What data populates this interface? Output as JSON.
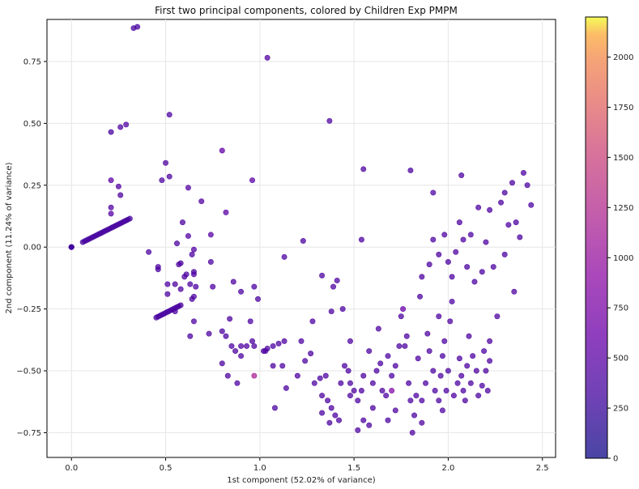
{
  "chart_data": {
    "type": "scatter",
    "title": "First two principal components, colored by Children Exp PMPM",
    "xlabel": "1st component (52.02% of variance)",
    "ylabel": "2nd component (11.24% of variance)",
    "xlim": [
      -0.13,
      2.57
    ],
    "ylim": [
      -0.85,
      0.92
    ],
    "xticks": [
      0.0,
      0.5,
      1.0,
      1.5,
      2.0,
      2.5
    ],
    "xtick_labels": [
      "0.0",
      "0.5",
      "1.0",
      "1.5",
      "2.0",
      "2.5"
    ],
    "yticks": [
      0.75,
      0.5,
      0.25,
      0.0,
      -0.25,
      -0.5,
      -0.75
    ],
    "ytick_labels": [
      "0.75",
      "0.50",
      "0.25",
      "0.00",
      "−0.25",
      "−0.50",
      "−0.75"
    ],
    "grid": true,
    "colorbar": {
      "colormap": "plasma",
      "min": 0,
      "max": 2200,
      "ticks": [
        0,
        250,
        500,
        750,
        1000,
        1250,
        1500,
        1750,
        2000
      ],
      "tick_labels": [
        "0",
        "250",
        "500",
        "750",
        "1000",
        "1250",
        "1500",
        "1750",
        "2000"
      ]
    },
    "points": [
      {
        "x": 0.33,
        "y": 0.885,
        "c": 80
      },
      {
        "x": 0.35,
        "y": 0.89,
        "c": 80
      },
      {
        "x": 1.04,
        "y": 0.765,
        "c": 120
      },
      {
        "x": 1.37,
        "y": 0.51,
        "c": 100
      },
      {
        "x": 0.52,
        "y": 0.535,
        "c": 100
      },
      {
        "x": 0.29,
        "y": 0.495,
        "c": 120
      },
      {
        "x": 0.26,
        "y": 0.485,
        "c": 100
      },
      {
        "x": 0.21,
        "y": 0.465,
        "c": 80
      },
      {
        "x": 0.8,
        "y": 0.39,
        "c": 180
      },
      {
        "x": 0.5,
        "y": 0.34,
        "c": 100
      },
      {
        "x": 0.52,
        "y": 0.285,
        "c": 100
      },
      {
        "x": 0.48,
        "y": 0.27,
        "c": 100
      },
      {
        "x": 0.96,
        "y": 0.27,
        "c": 150
      },
      {
        "x": 0.21,
        "y": 0.27,
        "c": 160
      },
      {
        "x": 0.25,
        "y": 0.245,
        "c": 120
      },
      {
        "x": 0.62,
        "y": 0.24,
        "c": 120
      },
      {
        "x": 0.26,
        "y": 0.21,
        "c": 100
      },
      {
        "x": 0.69,
        "y": 0.185,
        "c": 120
      },
      {
        "x": 0.21,
        "y": 0.16,
        "c": 120
      },
      {
        "x": 0.21,
        "y": 0.135,
        "c": 120
      },
      {
        "x": 0.82,
        "y": 0.14,
        "c": 150
      },
      {
        "x": 0.59,
        "y": 0.1,
        "c": 100
      },
      {
        "x": 0.62,
        "y": 0.045,
        "c": 120
      },
      {
        "x": 0.56,
        "y": 0.015,
        "c": 100
      },
      {
        "x": 0.41,
        "y": -0.02,
        "c": 100
      },
      {
        "x": 0.65,
        "y": -0.01,
        "c": 120
      },
      {
        "x": 0.64,
        "y": -0.03,
        "c": 100
      },
      {
        "x": 0.74,
        "y": 0.05,
        "c": 140
      },
      {
        "x": 0.46,
        "y": -0.08,
        "c": 100
      },
      {
        "x": 0.46,
        "y": -0.09,
        "c": 100
      },
      {
        "x": 0.57,
        "y": -0.07,
        "c": 100
      },
      {
        "x": 0.58,
        "y": -0.065,
        "c": 100
      },
      {
        "x": 0.65,
        "y": -0.1,
        "c": 100
      },
      {
        "x": 0.65,
        "y": -0.11,
        "c": 100
      },
      {
        "x": 0.61,
        "y": -0.11,
        "c": 100
      },
      {
        "x": 0.6,
        "y": -0.12,
        "c": 100
      },
      {
        "x": 0.51,
        "y": -0.15,
        "c": 100
      },
      {
        "x": 0.55,
        "y": -0.15,
        "c": 100
      },
      {
        "x": 0.63,
        "y": -0.15,
        "c": 100
      },
      {
        "x": 0.66,
        "y": -0.16,
        "c": 100
      },
      {
        "x": 0.58,
        "y": -0.17,
        "c": 100
      },
      {
        "x": 0.51,
        "y": -0.19,
        "c": 100
      },
      {
        "x": 0.64,
        "y": -0.21,
        "c": 100
      },
      {
        "x": 0.65,
        "y": -0.2,
        "c": 100
      },
      {
        "x": 0.74,
        "y": -0.06,
        "c": 100
      },
      {
        "x": 0.86,
        "y": -0.14,
        "c": 100
      },
      {
        "x": 0.75,
        "y": -0.16,
        "c": 100
      },
      {
        "x": 0.9,
        "y": -0.18,
        "c": 100
      },
      {
        "x": 0.97,
        "y": -0.16,
        "c": 100
      },
      {
        "x": 0.99,
        "y": -0.21,
        "c": 100
      },
      {
        "x": 1.13,
        "y": -0.04,
        "c": 100
      },
      {
        "x": 1.23,
        "y": 0.025,
        "c": 100
      },
      {
        "x": 1.33,
        "y": -0.115,
        "c": 100
      },
      {
        "x": 1.39,
        "y": -0.16,
        "c": 100
      },
      {
        "x": 1.41,
        "y": -0.135,
        "c": 100
      },
      {
        "x": 1.54,
        "y": 0.03,
        "c": 100
      },
      {
        "x": 1.55,
        "y": 0.315,
        "c": 100
      },
      {
        "x": 1.8,
        "y": 0.31,
        "c": 100
      },
      {
        "x": 1.92,
        "y": 0.22,
        "c": 100
      },
      {
        "x": 0.55,
        "y": -0.26,
        "c": 100
      },
      {
        "x": 0.65,
        "y": -0.3,
        "c": 100
      },
      {
        "x": 0.63,
        "y": -0.36,
        "c": 100
      },
      {
        "x": 0.73,
        "y": -0.35,
        "c": 100
      },
      {
        "x": 0.8,
        "y": -0.34,
        "c": 100
      },
      {
        "x": 0.82,
        "y": -0.36,
        "c": 100
      },
      {
        "x": 0.84,
        "y": -0.29,
        "c": 100
      },
      {
        "x": 0.85,
        "y": -0.4,
        "c": 100
      },
      {
        "x": 0.87,
        "y": -0.42,
        "c": 100
      },
      {
        "x": 0.9,
        "y": -0.4,
        "c": 100
      },
      {
        "x": 0.9,
        "y": -0.44,
        "c": 100
      },
      {
        "x": 0.93,
        "y": -0.4,
        "c": 100
      },
      {
        "x": 0.95,
        "y": -0.3,
        "c": 100
      },
      {
        "x": 0.96,
        "y": -0.38,
        "c": 100
      },
      {
        "x": 0.97,
        "y": -0.4,
        "c": 100
      },
      {
        "x": 1.02,
        "y": -0.42,
        "c": 100
      },
      {
        "x": 1.04,
        "y": -0.41,
        "c": 100
      },
      {
        "x": 1.07,
        "y": -0.4,
        "c": 100
      },
      {
        "x": 1.1,
        "y": -0.39,
        "c": 100
      },
      {
        "x": 1.13,
        "y": -0.38,
        "c": 100
      },
      {
        "x": 1.12,
        "y": -0.48,
        "c": 100
      },
      {
        "x": 1.07,
        "y": -0.48,
        "c": 100
      },
      {
        "x": 1.03,
        "y": -0.42,
        "c": 100
      },
      {
        "x": 1.14,
        "y": -0.57,
        "c": 100
      },
      {
        "x": 1.2,
        "y": -0.52,
        "c": 100
      },
      {
        "x": 1.22,
        "y": -0.38,
        "c": 100
      },
      {
        "x": 1.24,
        "y": -0.46,
        "c": 100
      },
      {
        "x": 1.27,
        "y": -0.43,
        "c": 100
      },
      {
        "x": 1.29,
        "y": -0.55,
        "c": 100
      },
      {
        "x": 1.32,
        "y": -0.53,
        "c": 100
      },
      {
        "x": 1.33,
        "y": -0.6,
        "c": 100
      },
      {
        "x": 1.35,
        "y": -0.52,
        "c": 100
      },
      {
        "x": 1.36,
        "y": -0.62,
        "c": 100
      },
      {
        "x": 1.38,
        "y": -0.65,
        "c": 100
      },
      {
        "x": 1.4,
        "y": -0.68,
        "c": 100
      },
      {
        "x": 1.42,
        "y": -0.7,
        "c": 100
      },
      {
        "x": 1.37,
        "y": -0.71,
        "c": 100
      },
      {
        "x": 1.43,
        "y": -0.55,
        "c": 100
      },
      {
        "x": 1.45,
        "y": -0.48,
        "c": 100
      },
      {
        "x": 1.47,
        "y": -0.5,
        "c": 100
      },
      {
        "x": 1.48,
        "y": -0.6,
        "c": 100
      },
      {
        "x": 1.5,
        "y": -0.58,
        "c": 100
      },
      {
        "x": 1.52,
        "y": -0.62,
        "c": 100
      },
      {
        "x": 1.54,
        "y": -0.58,
        "c": 100
      },
      {
        "x": 1.55,
        "y": -0.7,
        "c": 100
      },
      {
        "x": 1.58,
        "y": -0.72,
        "c": 100
      },
      {
        "x": 1.6,
        "y": -0.55,
        "c": 100
      },
      {
        "x": 1.62,
        "y": -0.5,
        "c": 100
      },
      {
        "x": 1.64,
        "y": -0.47,
        "c": 100
      },
      {
        "x": 1.65,
        "y": -0.58,
        "c": 100
      },
      {
        "x": 1.67,
        "y": -0.6,
        "c": 100
      },
      {
        "x": 1.68,
        "y": -0.44,
        "c": 100
      },
      {
        "x": 1.7,
        "y": -0.52,
        "c": 100
      },
      {
        "x": 1.72,
        "y": -0.66,
        "c": 100
      },
      {
        "x": 1.74,
        "y": -0.4,
        "c": 100
      },
      {
        "x": 1.75,
        "y": -0.28,
        "c": 100
      },
      {
        "x": 1.76,
        "y": -0.25,
        "c": 200
      },
      {
        "x": 1.77,
        "y": -0.4,
        "c": 100
      },
      {
        "x": 1.79,
        "y": -0.55,
        "c": 100
      },
      {
        "x": 1.8,
        "y": -0.62,
        "c": 100
      },
      {
        "x": 1.81,
        "y": -0.75,
        "c": 100
      },
      {
        "x": 1.82,
        "y": -0.68,
        "c": 100
      },
      {
        "x": 1.83,
        "y": -0.6,
        "c": 100
      },
      {
        "x": 1.84,
        "y": -0.45,
        "c": 100
      },
      {
        "x": 1.86,
        "y": -0.62,
        "c": 100
      },
      {
        "x": 1.88,
        "y": -0.55,
        "c": 100
      },
      {
        "x": 1.89,
        "y": -0.35,
        "c": 100
      },
      {
        "x": 1.9,
        "y": -0.42,
        "c": 100
      },
      {
        "x": 1.92,
        "y": -0.5,
        "c": 100
      },
      {
        "x": 1.93,
        "y": -0.58,
        "c": 100
      },
      {
        "x": 1.95,
        "y": -0.62,
        "c": 100
      },
      {
        "x": 1.96,
        "y": -0.52,
        "c": 100
      },
      {
        "x": 1.97,
        "y": -0.44,
        "c": 100
      },
      {
        "x": 1.98,
        "y": -0.38,
        "c": 100
      },
      {
        "x": 1.99,
        "y": -0.58,
        "c": 100
      },
      {
        "x": 2.0,
        "y": -0.5,
        "c": 100
      },
      {
        "x": 2.01,
        "y": -0.3,
        "c": 100
      },
      {
        "x": 2.02,
        "y": -0.22,
        "c": 100
      },
      {
        "x": 2.03,
        "y": -0.6,
        "c": 100
      },
      {
        "x": 2.05,
        "y": -0.55,
        "c": 100
      },
      {
        "x": 2.06,
        "y": -0.45,
        "c": 100
      },
      {
        "x": 2.07,
        "y": -0.52,
        "c": 100
      },
      {
        "x": 2.08,
        "y": -0.58,
        "c": 100
      },
      {
        "x": 2.1,
        "y": -0.48,
        "c": 100
      },
      {
        "x": 2.11,
        "y": -0.36,
        "c": 100
      },
      {
        "x": 2.12,
        "y": -0.55,
        "c": 100
      },
      {
        "x": 2.13,
        "y": -0.44,
        "c": 100
      },
      {
        "x": 2.15,
        "y": -0.5,
        "c": 100
      },
      {
        "x": 2.16,
        "y": -0.6,
        "c": 100
      },
      {
        "x": 2.18,
        "y": -0.56,
        "c": 100
      },
      {
        "x": 2.19,
        "y": -0.42,
        "c": 100
      },
      {
        "x": 2.2,
        "y": -0.5,
        "c": 100
      },
      {
        "x": 2.21,
        "y": -0.58,
        "c": 100
      },
      {
        "x": 2.22,
        "y": -0.38,
        "c": 100
      },
      {
        "x": 2.22,
        "y": -0.46,
        "c": 100
      },
      {
        "x": 1.95,
        "y": -0.03,
        "c": 100
      },
      {
        "x": 1.98,
        "y": 0.05,
        "c": 100
      },
      {
        "x": 2.0,
        "y": -0.06,
        "c": 100
      },
      {
        "x": 2.02,
        "y": -0.12,
        "c": 100
      },
      {
        "x": 2.04,
        "y": -0.02,
        "c": 100
      },
      {
        "x": 2.06,
        "y": 0.1,
        "c": 100
      },
      {
        "x": 2.08,
        "y": 0.03,
        "c": 100
      },
      {
        "x": 2.1,
        "y": -0.08,
        "c": 100
      },
      {
        "x": 2.12,
        "y": 0.05,
        "c": 100
      },
      {
        "x": 2.14,
        "y": -0.14,
        "c": 100
      },
      {
        "x": 2.16,
        "y": 0.16,
        "c": 100
      },
      {
        "x": 2.18,
        "y": -0.1,
        "c": 100
      },
      {
        "x": 2.2,
        "y": 0.02,
        "c": 100
      },
      {
        "x": 2.22,
        "y": 0.15,
        "c": 100
      },
      {
        "x": 2.24,
        "y": -0.08,
        "c": 100
      },
      {
        "x": 2.26,
        "y": -0.28,
        "c": 100
      },
      {
        "x": 2.28,
        "y": 0.18,
        "c": 100
      },
      {
        "x": 2.3,
        "y": 0.22,
        "c": 100
      },
      {
        "x": 2.32,
        "y": 0.09,
        "c": 100
      },
      {
        "x": 2.34,
        "y": 0.26,
        "c": 100
      },
      {
        "x": 2.36,
        "y": 0.1,
        "c": 100
      },
      {
        "x": 2.38,
        "y": 0.04,
        "c": 100
      },
      {
        "x": 2.4,
        "y": 0.3,
        "c": 100
      },
      {
        "x": 2.42,
        "y": 0.25,
        "c": 100
      },
      {
        "x": 2.44,
        "y": 0.17,
        "c": 100
      },
      {
        "x": 2.35,
        "y": -0.18,
        "c": 100
      },
      {
        "x": 2.3,
        "y": -0.03,
        "c": 100
      },
      {
        "x": 2.07,
        "y": 0.29,
        "c": 100
      },
      {
        "x": 1.85,
        "y": -0.2,
        "c": 100
      },
      {
        "x": 1.9,
        "y": -0.07,
        "c": 100
      },
      {
        "x": 1.92,
        "y": 0.03,
        "c": 100
      },
      {
        "x": 1.86,
        "y": -0.12,
        "c": 100
      },
      {
        "x": 1.63,
        "y": -0.33,
        "c": 100
      },
      {
        "x": 1.58,
        "y": -0.42,
        "c": 100
      },
      {
        "x": 1.48,
        "y": -0.38,
        "c": 100
      },
      {
        "x": 1.44,
        "y": -0.25,
        "c": 100
      },
      {
        "x": 1.38,
        "y": -0.26,
        "c": 100
      },
      {
        "x": 1.28,
        "y": -0.3,
        "c": 100
      },
      {
        "x": 0.97,
        "y": -0.52,
        "c": 450
      },
      {
        "x": 0.88,
        "y": -0.55,
        "c": 100
      },
      {
        "x": 0.83,
        "y": -0.52,
        "c": 100
      },
      {
        "x": 0.8,
        "y": -0.47,
        "c": 100
      },
      {
        "x": 1.08,
        "y": -0.65,
        "c": 100
      },
      {
        "x": 1.33,
        "y": -0.67,
        "c": 100
      },
      {
        "x": 1.6,
        "y": -0.65,
        "c": 100
      },
      {
        "x": 1.68,
        "y": -0.7,
        "c": 100
      },
      {
        "x": 1.86,
        "y": -0.71,
        "c": 100
      },
      {
        "x": 1.97,
        "y": -0.66,
        "c": 100
      },
      {
        "x": 2.09,
        "y": -0.62,
        "c": 100
      },
      {
        "x": 1.52,
        "y": -0.74,
        "c": 100
      },
      {
        "x": 1.7,
        "y": -0.58,
        "c": 300
      },
      {
        "x": 1.48,
        "y": -0.55,
        "c": 100
      },
      {
        "x": 1.55,
        "y": -0.52,
        "c": 100
      },
      {
        "x": 1.72,
        "y": -0.48,
        "c": 100
      },
      {
        "x": 1.78,
        "y": -0.36,
        "c": 100
      },
      {
        "x": 1.95,
        "y": -0.28,
        "c": 100
      }
    ],
    "lines": [
      {
        "x0": 0.06,
        "y0": 0.02,
        "x1": 0.31,
        "y1": 0.115,
        "n": 26,
        "c": 80
      },
      {
        "x0": 0.45,
        "y0": -0.285,
        "x1": 0.58,
        "y1": -0.235,
        "n": 14,
        "c": 90
      }
    ],
    "origin_cluster": {
      "x": 0.0,
      "y": 0.0,
      "c": 60
    }
  }
}
